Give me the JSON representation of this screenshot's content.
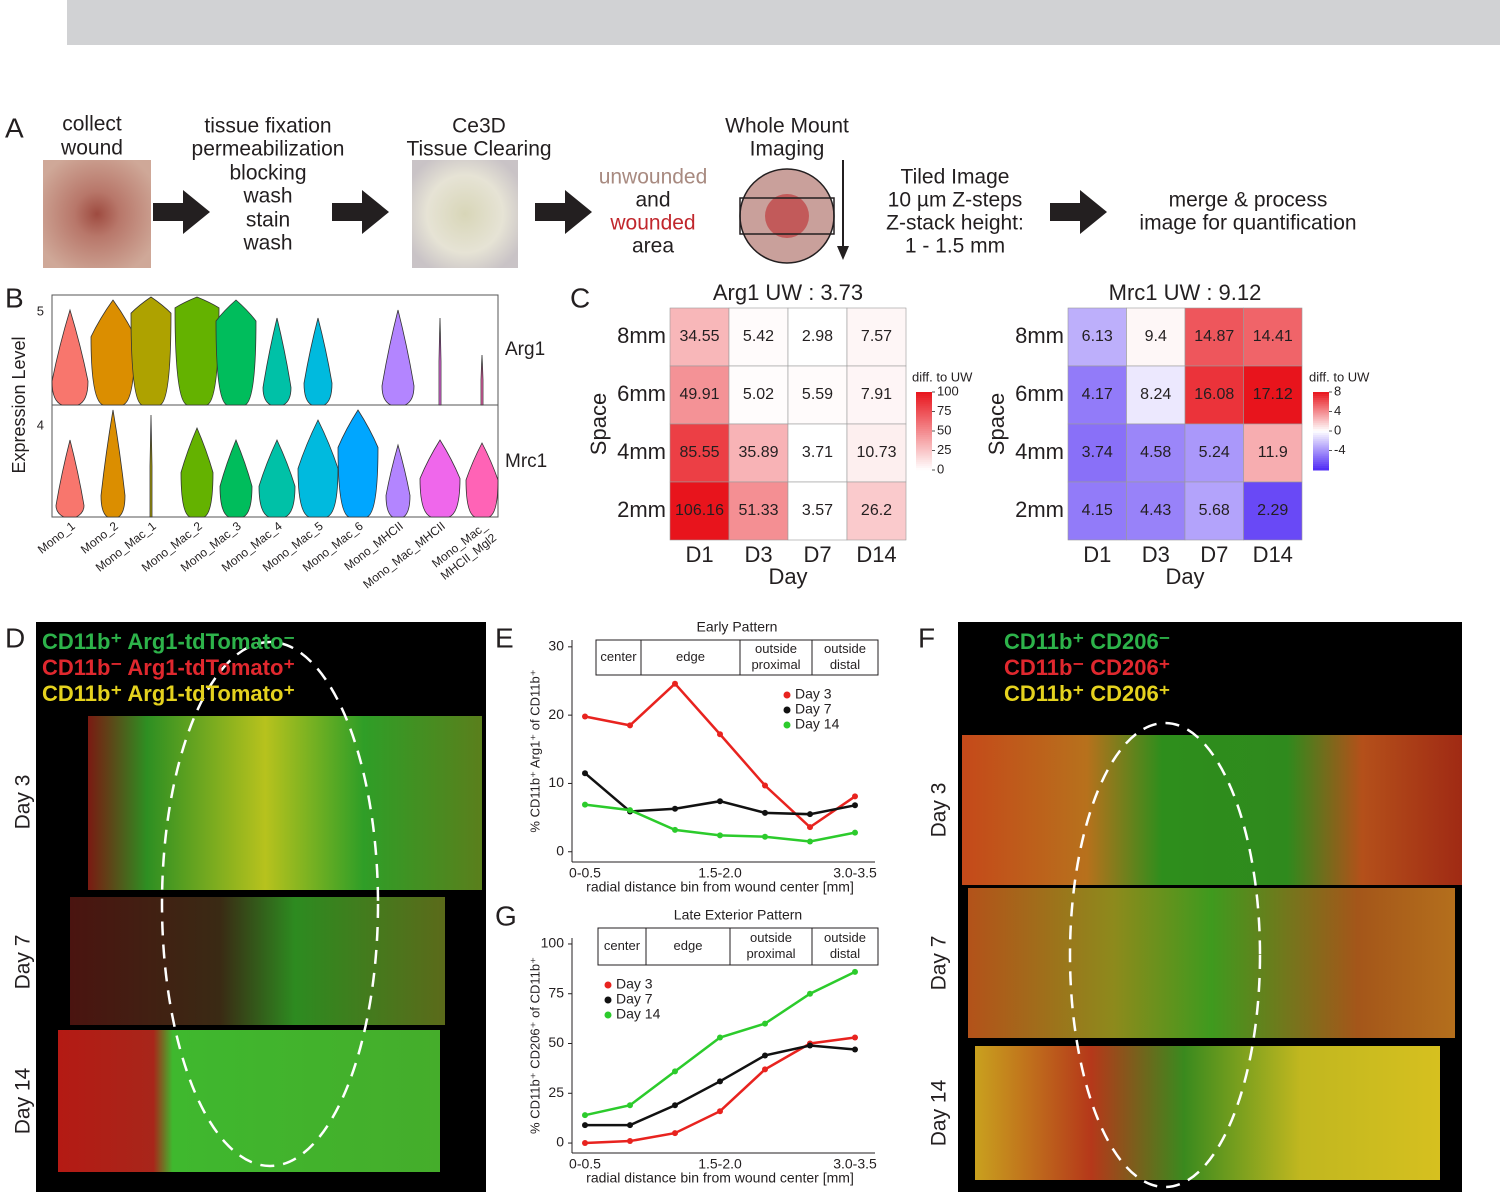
{
  "panel_a": {
    "label": "A",
    "step1": [
      "collect",
      "wound"
    ],
    "step2": [
      "tissue fixation",
      "permeabilization",
      "blocking",
      "wash",
      "stain",
      "wash"
    ],
    "step3": [
      "Ce3D",
      "Tissue Clearing"
    ],
    "step4": [
      "unwounded",
      "and",
      "wounded",
      "area"
    ],
    "step4_colors": [
      "#a88a80",
      "#231f20",
      "#c1272d",
      "#231f20"
    ],
    "step5": [
      "Whole Mount",
      "Imaging"
    ],
    "step6": [
      "Tiled Image",
      "10 µm Z-steps",
      "Z-stack height:",
      "1 - 1.5 mm"
    ],
    "step7": [
      "merge & process",
      "image for quantification"
    ]
  },
  "panel_b": {
    "label": "B",
    "ylabel": "Expression Level",
    "genes": [
      "Arg1",
      "Mrc1"
    ],
    "yticks": [
      5,
      4
    ],
    "categories": [
      [
        "Mono_1"
      ],
      [
        "Mono_2"
      ],
      [
        "Mono_Mac_1"
      ],
      [
        "Mono_Mac_2"
      ],
      [
        "Mono_Mac_3"
      ],
      [
        "Mono_Mac_4"
      ],
      [
        "Mono_Mac_5"
      ],
      [
        "Mono_Mac_6"
      ],
      [
        "Mono_MHCII"
      ],
      [
        "Mono_Mac_MHCII"
      ],
      [
        "Mono_Mac_",
        "MHCII_Mgl2"
      ]
    ],
    "colors": [
      "#f8766d",
      "#db8e00",
      "#aea200",
      "#64b200",
      "#00bd5c",
      "#00c1a7",
      "#00badE",
      "#00a6ff",
      "#b385ff",
      "#ef67eb",
      "#ff63b6"
    ]
  },
  "panel_c": {
    "label": "C"
  },
  "panel_d": {
    "label": "D",
    "legend": [
      "CD11b⁺ Arg1-tdTomato⁻",
      "CD11b⁻ Arg1-tdTomato⁺",
      "CD11b⁺ Arg1-tdTomato⁺"
    ],
    "legend_colors": [
      "#2db34a",
      "#e0282e",
      "#e5d21e"
    ],
    "days": [
      "Day 3",
      "Day 7",
      "Day 14"
    ]
  },
  "panel_e": {
    "label": "E"
  },
  "panel_f": {
    "label": "F",
    "legend": [
      "CD11b⁺ CD206⁻",
      "CD11b⁻ CD206⁺",
      "CD11b⁺ CD206⁺"
    ],
    "legend_colors": [
      "#2db34a",
      "#e0282e",
      "#e5d21e"
    ],
    "days": [
      "Day 3",
      "Day 7",
      "Day 14"
    ]
  },
  "panel_g": {
    "label": "G"
  },
  "chart_data": [
    {
      "type": "heatmap",
      "title_prefix": "Arg1 UW :",
      "uw": 3.73,
      "columns": [
        "D1",
        "D3",
        "D7",
        "D14"
      ],
      "rows": [
        "8mm",
        "6mm",
        "4mm",
        "2mm"
      ],
      "xlabel": "Day",
      "ylabel": "Space",
      "values": [
        [
          34.55,
          5.42,
          2.98,
          7.57
        ],
        [
          49.91,
          5.02,
          5.59,
          7.91
        ],
        [
          85.55,
          35.89,
          3.71,
          10.73
        ],
        [
          106.16,
          51.33,
          3.57,
          26.2
        ]
      ],
      "colorbar_title": "diff. to UW",
      "clim": [
        0,
        100
      ],
      "cticks": [
        0,
        25,
        50,
        75,
        100
      ],
      "colors": [
        "#ffffff",
        "#e8141c"
      ]
    },
    {
      "type": "heatmap",
      "title_prefix": "Mrc1 UW :",
      "uw": 9.12,
      "columns": [
        "D1",
        "D3",
        "D7",
        "D14"
      ],
      "rows": [
        "8mm",
        "6mm",
        "4mm",
        "2mm"
      ],
      "xlabel": "Day",
      "ylabel": "Space",
      "values": [
        [
          6.13,
          9.4,
          14.87,
          14.41
        ],
        [
          4.17,
          8.24,
          16.08,
          17.12
        ],
        [
          3.74,
          4.58,
          5.24,
          11.9
        ],
        [
          4.15,
          4.43,
          5.68,
          2.29
        ]
      ],
      "colorbar_title": "diff. to UW",
      "clim": [
        -8,
        8
      ],
      "cticks": [
        -4,
        0,
        4,
        8
      ],
      "colors": [
        "#4f2af5",
        "#ffffff",
        "#e8141c"
      ]
    },
    {
      "type": "line",
      "title": "Early Pattern",
      "regions": [
        [
          "center"
        ],
        [
          "edge"
        ],
        [
          "outside",
          "proximal"
        ],
        [
          "outside",
          "distal"
        ]
      ],
      "categories": [
        "0-0.5",
        null,
        null,
        "1.5-2.0",
        null,
        null,
        "3.0-3.5"
      ],
      "xlabel": "radial distance bin from wound center [mm]",
      "ylabel": "% CD11b⁺ Arg1⁺ of CD11b⁺",
      "ylim": [
        -1.5,
        31
      ],
      "yticks": [
        0,
        10,
        20,
        30
      ],
      "legend": "upper right",
      "series": [
        {
          "name": "Day 3",
          "color": "#e8231f",
          "values": [
            19.8,
            18.5,
            24.6,
            17.2,
            9.7,
            3.6,
            8.1
          ]
        },
        {
          "name": "Day 7",
          "color": "#111111",
          "values": [
            11.5,
            5.9,
            6.3,
            7.4,
            5.7,
            5.5,
            6.8
          ]
        },
        {
          "name": "Day 14",
          "color": "#2ccb2c",
          "values": [
            6.9,
            6.1,
            3.2,
            2.4,
            2.2,
            1.5,
            2.8
          ]
        }
      ]
    },
    {
      "type": "line",
      "title": "Late Exterior Pattern",
      "regions": [
        [
          "center"
        ],
        [
          "edge"
        ],
        [
          "outside",
          "proximal"
        ],
        [
          "outside",
          "distal"
        ]
      ],
      "categories": [
        "0-0.5",
        null,
        null,
        "1.5-2.0",
        null,
        null,
        "3.0-3.5"
      ],
      "xlabel": "radial distance bin from wound center [mm]",
      "ylabel": "% CD11b⁺ CD206⁺ of CD11b⁺",
      "ylim": [
        -5,
        103
      ],
      "yticks": [
        0,
        25,
        50,
        75,
        100
      ],
      "legend": "upper left",
      "series": [
        {
          "name": "Day 3",
          "color": "#e8231f",
          "values": [
            0,
            1,
            5,
            16,
            37,
            50,
            53
          ]
        },
        {
          "name": "Day 7",
          "color": "#111111",
          "values": [
            9,
            9,
            19,
            31,
            44,
            49,
            47
          ]
        },
        {
          "name": "Day 14",
          "color": "#2ccb2c",
          "values": [
            14,
            19,
            36,
            53,
            60,
            75,
            86
          ]
        }
      ]
    }
  ]
}
